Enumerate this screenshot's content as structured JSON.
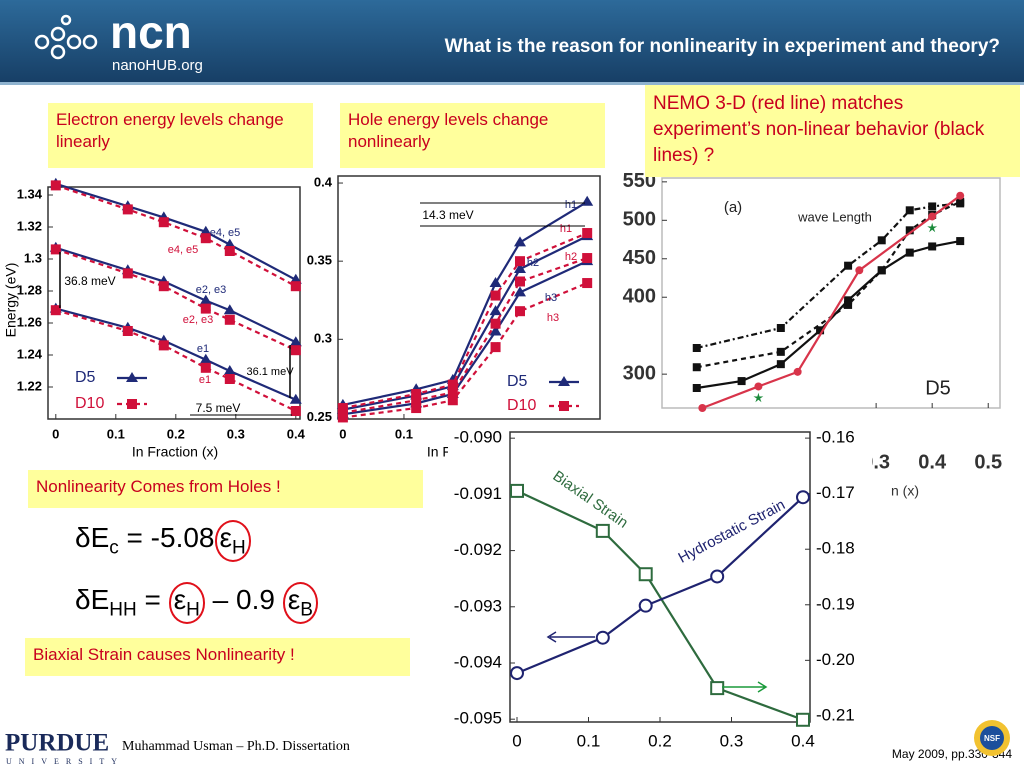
{
  "header": {
    "title": "What is the reason for nonlinearity in experiment and theory?",
    "logo": "ncn",
    "logo_sub": "nanoHUB.org"
  },
  "notes": [
    "Electron energy levels change linearly",
    "Hole energy levels change nonlinearly",
    "NEMO 3-D (red line) matches experiment’s non-linear behavior (black lines) ?",
    "Nonlinearity Comes from Holes !",
    "Biaxial Strain causes Nonlinearity !"
  ],
  "equations": [
    {
      "parts": [
        "δE",
        "c",
        " = -5.08",
        "ε",
        "H"
      ]
    },
    {
      "parts": [
        "δE",
        "HH",
        " = ",
        "ε",
        "H",
        " – 0.9 ",
        "ε",
        "B"
      ]
    }
  ],
  "footer": {
    "university": "PURDUE",
    "university_sub": "UNIVERSITY",
    "author": "Muhammad Usman – Ph.D. Dissertation",
    "citation": "May 2009, pp.330-344",
    "nsf": "NSF"
  },
  "chart_data": [
    {
      "type": "line",
      "ylabel": "Energy (eV)",
      "xlabel": "In Fraction (x)",
      "x": [
        0,
        0.12,
        0.18,
        0.25,
        0.29,
        0.4
      ],
      "xlim": [
        -0.013,
        0.407
      ],
      "xticks": [
        0,
        0.1,
        0.2,
        0.3,
        0.4
      ],
      "ylim": [
        1.2,
        1.345
      ],
      "yticks": [
        1.22,
        1.24,
        1.26,
        1.28,
        1.3,
        1.32,
        1.34
      ],
      "series": [
        {
          "name": "D5",
          "color": "#1f2a78",
          "dash": false,
          "marker": "triangle",
          "lines": [
            [
              1.347,
              1.333,
              1.326,
              1.317,
              1.309,
              1.287
            ],
            [
              1.307,
              1.293,
              1.286,
              1.274,
              1.268,
              1.248
            ],
            [
              1.269,
              1.257,
              1.249,
              1.237,
              1.23,
              1.212
            ]
          ]
        },
        {
          "name": "D10",
          "color": "#d0103a",
          "dash": true,
          "marker": "square",
          "lines": [
            [
              1.346,
              1.331,
              1.323,
              1.313,
              1.305,
              1.283
            ],
            [
              1.306,
              1.291,
              1.283,
              1.269,
              1.262,
              1.243
            ],
            [
              1.268,
              1.255,
              1.246,
              1.232,
              1.225,
              1.205
            ]
          ]
        }
      ],
      "annotations": [
        "e4, e5",
        "e4, e5",
        "e2, e3",
        "e2, e3",
        "e1",
        "e1",
        "36.8 meV",
        "36.1 meV",
        "7.5 meV"
      ]
    },
    {
      "type": "line",
      "xlabel": "In Fraction (x)",
      "x": [
        0,
        0.12,
        0.18,
        0.25,
        0.29,
        0.4
      ],
      "xlim": [
        -0.008,
        0.421
      ],
      "xticks": [
        0,
        0.1
      ],
      "ylim": [
        0.249,
        0.4045
      ],
      "yticks": [
        0.25,
        0.3,
        0.35,
        0.4
      ],
      "series": [
        {
          "name": "D5",
          "color": "#1f2a78",
          "dash": false,
          "marker": "triangle",
          "lines": [
            [
              0.258,
              0.268,
              0.274,
              0.336,
              0.362,
              0.388
            ],
            [
              0.255,
              0.264,
              0.27,
              0.318,
              0.345,
              0.366
            ],
            [
              0.252,
              0.259,
              0.265,
              0.305,
              0.33,
              0.35
            ]
          ]
        },
        {
          "name": "D10",
          "color": "#d0103a",
          "dash": true,
          "marker": "square",
          "lines": [
            [
              0.256,
              0.265,
              0.271,
              0.328,
              0.35,
              0.368
            ],
            [
              0.253,
              0.261,
              0.266,
              0.31,
              0.337,
              0.352
            ],
            [
              0.25,
              0.256,
              0.261,
              0.295,
              0.318,
              0.336
            ]
          ]
        }
      ],
      "annotations": [
        "14.3 meV",
        "h1",
        "h1",
        "h2",
        "h2",
        "h3",
        "h3"
      ]
    },
    {
      "type": "line",
      "xlabel": "n (x)",
      "xlim": [
        -0.082,
        0.521
      ],
      "xticks": [
        0.3,
        0.4,
        0.5
      ],
      "ylim": [
        256,
        555
      ],
      "yticks": [
        300,
        400,
        450,
        500,
        550
      ],
      "series": [
        {
          "color": "#111111",
          "dash": false,
          "marker": "square",
          "x": [
            -0.02,
            0.06,
            0.13,
            0.2,
            0.25,
            0.31,
            0.36,
            0.4,
            0.45
          ],
          "values": [
            282,
            291,
            313,
            357,
            396,
            435,
            458,
            466,
            473
          ]
        },
        {
          "color": "#111111",
          "dash": "dashdot",
          "marker": "square",
          "x": [
            -0.02,
            0.13,
            0.25,
            0.31,
            0.36,
            0.4,
            0.45
          ],
          "values": [
            334,
            360,
            441,
            474,
            513,
            518,
            522
          ]
        },
        {
          "color": "#111111",
          "dash": true,
          "marker": "square",
          "x": [
            -0.02,
            0.13,
            0.25,
            0.31,
            0.36,
            0.4,
            0.45
          ],
          "values": [
            309,
            329,
            390,
            435,
            487,
            507,
            524
          ]
        },
        {
          "color": "#d8344a",
          "dash": false,
          "marker": "dot",
          "x": [
            -0.01,
            0.09,
            0.16,
            0.27,
            0.4,
            0.45
          ],
          "values": [
            256,
            284,
            303,
            435,
            505,
            532
          ]
        },
        {
          "color": "#1a8a3a",
          "dash": "none",
          "marker": "star",
          "x": [
            0.09,
            0.4
          ],
          "values": [
            269,
            490
          ]
        }
      ],
      "annotations": [
        "(a)",
        "wave Length",
        "D5"
      ]
    },
    {
      "type": "line",
      "x": [
        0,
        0.12,
        0.18,
        0.28,
        0.4
      ],
      "xlim": [
        -0.0098,
        0.4098
      ],
      "xticks": [
        0,
        0.1,
        0.2,
        0.3,
        0.4
      ],
      "ylim": [
        -0.09505,
        -0.08989
      ],
      "yticks": [
        {
          "value": -0.09,
          "label": "-0.090"
        },
        -0.091,
        -0.092,
        -0.093,
        -0.094,
        -0.095
      ],
      "y2lim": [
        -0.2111,
        -0.1589
      ],
      "y2ticks": [
        -0.16,
        -0.17,
        -0.18,
        -0.19,
        {
          "value": -0.2,
          "label": "-0.20"
        },
        -0.21
      ],
      "series": [
        {
          "name": "Biaxial Strain",
          "color": "#2e6b3e",
          "axis": "y2",
          "dash": false,
          "marker": "open-square",
          "values": [
            -0.1695,
            -0.1767,
            -0.1845,
            -0.205,
            -0.2107
          ]
        },
        {
          "name": "Hydrostatic Strain",
          "color": "#1f2370",
          "dash": false,
          "marker": "circle",
          "values": [
            -0.09418,
            -0.09355,
            -0.09298,
            -0.09246,
            -0.09105
          ]
        }
      ]
    }
  ]
}
